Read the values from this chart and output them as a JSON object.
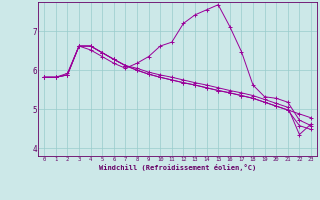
{
  "title": "",
  "xlabel": "Windchill (Refroidissement éolien,°C)",
  "bg_color": "#cce8e8",
  "line_color": "#990099",
  "grid_color": "#99cccc",
  "axis_color": "#660066",
  "text_color": "#660066",
  "xlim": [
    -0.5,
    23.5
  ],
  "ylim": [
    3.8,
    7.75
  ],
  "yticks": [
    4,
    5,
    6,
    7
  ],
  "xticks": [
    0,
    1,
    2,
    3,
    4,
    5,
    6,
    7,
    8,
    9,
    10,
    11,
    12,
    13,
    14,
    15,
    16,
    17,
    18,
    19,
    20,
    21,
    22,
    23
  ],
  "line1_x": [
    0,
    1,
    2,
    3,
    4,
    5,
    6,
    7,
    8,
    9,
    10,
    11,
    12,
    13,
    14,
    15,
    16,
    17,
    18,
    19,
    20,
    21,
    22,
    23
  ],
  "line1_y": [
    5.82,
    5.82,
    5.92,
    6.62,
    6.52,
    6.35,
    6.18,
    6.05,
    6.18,
    6.35,
    6.62,
    6.72,
    7.2,
    7.42,
    7.55,
    7.68,
    7.12,
    6.48,
    5.62,
    5.32,
    5.28,
    5.18,
    4.72,
    4.58
  ],
  "line2_x": [
    0,
    1,
    2,
    3,
    4,
    5,
    6,
    7,
    8,
    9,
    10,
    11,
    12,
    13,
    14,
    15,
    16,
    17,
    18,
    19,
    20,
    21,
    22,
    23
  ],
  "line2_y": [
    5.82,
    5.82,
    5.88,
    6.62,
    6.62,
    6.45,
    6.28,
    6.12,
    6.0,
    5.9,
    5.82,
    5.75,
    5.68,
    5.62,
    5.55,
    5.48,
    5.42,
    5.35,
    5.28,
    5.18,
    5.08,
    4.98,
    4.58,
    4.48
  ],
  "line3_x": [
    0,
    1,
    2,
    3,
    4,
    5,
    6,
    7,
    8,
    9,
    10,
    11,
    12,
    13,
    14,
    15,
    16,
    17,
    18,
    19,
    20,
    21,
    22,
    23
  ],
  "line3_y": [
    5.82,
    5.82,
    5.88,
    6.62,
    6.62,
    6.45,
    6.28,
    6.12,
    6.0,
    5.9,
    5.82,
    5.75,
    5.68,
    5.62,
    5.55,
    5.48,
    5.42,
    5.35,
    5.28,
    5.18,
    5.08,
    4.98,
    4.88,
    4.78
  ],
  "line4_x": [
    0,
    1,
    2,
    3,
    4,
    5,
    6,
    7,
    8,
    9,
    10,
    11,
    12,
    13,
    14,
    15,
    16,
    17,
    18,
    19,
    20,
    21,
    22,
    23
  ],
  "line4_y": [
    5.82,
    5.82,
    5.88,
    6.62,
    6.62,
    6.45,
    6.28,
    6.12,
    6.05,
    5.95,
    5.88,
    5.82,
    5.75,
    5.68,
    5.62,
    5.55,
    5.48,
    5.42,
    5.35,
    5.25,
    5.15,
    5.05,
    4.35,
    4.62
  ]
}
